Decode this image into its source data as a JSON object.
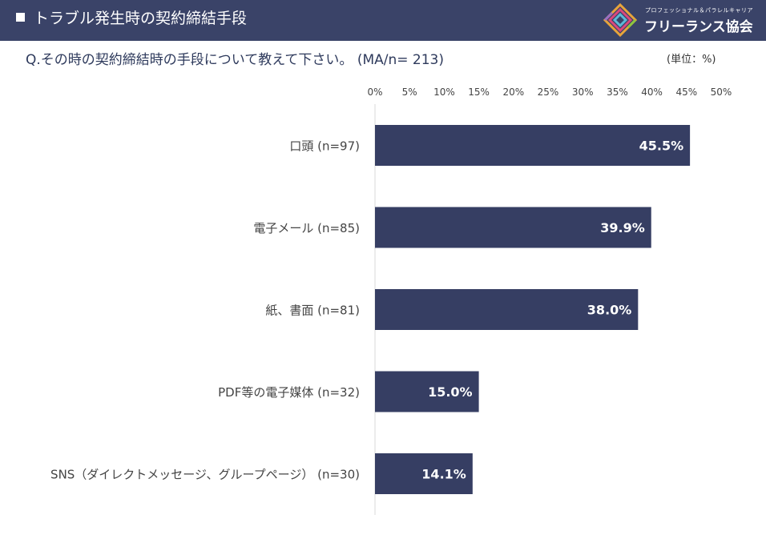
{
  "header": {
    "title": "トラブル発生時の契約締結手段",
    "logo_tagline": "プロフェッショナル＆パラレルキャリア",
    "logo_name": "フリーランス協会"
  },
  "question": "Q.その時の契約締結時の手段について教えて下さい。 (MA/n= 213)",
  "unit_note": "(単位：%)",
  "colors": {
    "header_bg": "#3a4368",
    "bar": "#363e63",
    "label_text": "#444444"
  },
  "chart_data": {
    "type": "bar",
    "orientation": "horizontal",
    "categories": [
      "口頭 (n=97)",
      "電子メール (n=85)",
      "紙、書面 (n=81)",
      "PDF等の電子媒体 (n=32)",
      "SNS（ダイレクトメッセージ、グループページ） (n=30)"
    ],
    "values": [
      45.5,
      39.9,
      38.0,
      15.0,
      14.1
    ],
    "data_labels": [
      "45.5%",
      "39.9%",
      "38.0%",
      "15.0%",
      "14.1%"
    ],
    "xlim": [
      0,
      50
    ],
    "ticks": [
      "0%",
      "5%",
      "10%",
      "15%",
      "20%",
      "25%",
      "30%",
      "35%",
      "40%",
      "45%",
      "50%"
    ],
    "tick_position": "top",
    "grid": false
  }
}
